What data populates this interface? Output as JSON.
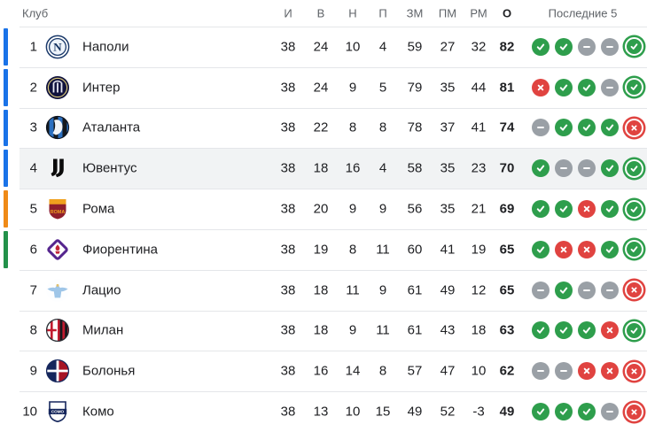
{
  "header": {
    "club_label": "Клуб",
    "stat_columns": [
      "И",
      "В",
      "Н",
      "П",
      "ЗМ",
      "ПМ",
      "РМ"
    ],
    "stat_keys": [
      "games",
      "wins",
      "draws",
      "losses",
      "goals-for",
      "goals-against",
      "goal-diff"
    ],
    "points_label": "О",
    "form_label": "Последние 5"
  },
  "colors": {
    "qualification": {
      "ucl": "#1a73e8",
      "uel": "#ef8a17",
      "uecl": "#23914a"
    },
    "form": {
      "win": "#2e9e4c",
      "draw": "#9aa0a6",
      "loss": "#e04340"
    },
    "row_highlight": "#f1f3f4"
  },
  "rows": [
    {
      "position": "1",
      "club": "Наполи",
      "crest": "napoli",
      "qualification": "ucl",
      "highlighted": false,
      "stats": [
        "38",
        "24",
        "10",
        "4",
        "59",
        "27",
        "32"
      ],
      "points": "82",
      "form": [
        "W",
        "W",
        "D",
        "D",
        "W"
      ]
    },
    {
      "position": "2",
      "club": "Интер",
      "crest": "inter",
      "qualification": "ucl",
      "highlighted": false,
      "stats": [
        "38",
        "24",
        "9",
        "5",
        "79",
        "35",
        "44"
      ],
      "points": "81",
      "form": [
        "L",
        "W",
        "W",
        "D",
        "W"
      ]
    },
    {
      "position": "3",
      "club": "Аталанта",
      "crest": "atalanta",
      "qualification": "ucl",
      "highlighted": false,
      "stats": [
        "38",
        "22",
        "8",
        "8",
        "78",
        "37",
        "41"
      ],
      "points": "74",
      "form": [
        "D",
        "W",
        "W",
        "W",
        "L"
      ]
    },
    {
      "position": "4",
      "club": "Ювентус",
      "crest": "juventus",
      "qualification": "ucl",
      "highlighted": true,
      "stats": [
        "38",
        "18",
        "16",
        "4",
        "58",
        "35",
        "23"
      ],
      "points": "70",
      "form": [
        "W",
        "D",
        "D",
        "W",
        "W"
      ]
    },
    {
      "position": "5",
      "club": "Рома",
      "crest": "roma",
      "qualification": "uel",
      "highlighted": false,
      "stats": [
        "38",
        "20",
        "9",
        "9",
        "56",
        "35",
        "21"
      ],
      "points": "69",
      "form": [
        "W",
        "W",
        "L",
        "W",
        "W"
      ]
    },
    {
      "position": "6",
      "club": "Фиорентина",
      "crest": "fiorentina",
      "qualification": "uecl",
      "highlighted": false,
      "stats": [
        "38",
        "19",
        "8",
        "11",
        "60",
        "41",
        "19"
      ],
      "points": "65",
      "form": [
        "W",
        "L",
        "L",
        "W",
        "W"
      ]
    },
    {
      "position": "7",
      "club": "Лацио",
      "crest": "lazio",
      "qualification": null,
      "highlighted": false,
      "stats": [
        "38",
        "18",
        "11",
        "9",
        "61",
        "49",
        "12"
      ],
      "points": "65",
      "form": [
        "D",
        "W",
        "D",
        "D",
        "L"
      ]
    },
    {
      "position": "8",
      "club": "Милан",
      "crest": "milan",
      "qualification": null,
      "highlighted": false,
      "stats": [
        "38",
        "18",
        "9",
        "11",
        "61",
        "43",
        "18"
      ],
      "points": "63",
      "form": [
        "W",
        "W",
        "W",
        "L",
        "W"
      ]
    },
    {
      "position": "9",
      "club": "Болонья",
      "crest": "bologna",
      "qualification": null,
      "highlighted": false,
      "stats": [
        "38",
        "16",
        "14",
        "8",
        "57",
        "47",
        "10"
      ],
      "points": "62",
      "form": [
        "D",
        "D",
        "L",
        "L",
        "L"
      ]
    },
    {
      "position": "10",
      "club": "Комо",
      "crest": "como",
      "qualification": null,
      "highlighted": false,
      "stats": [
        "38",
        "13",
        "10",
        "15",
        "49",
        "52",
        "-3"
      ],
      "points": "49",
      "form": [
        "W",
        "W",
        "W",
        "D",
        "L"
      ]
    }
  ]
}
